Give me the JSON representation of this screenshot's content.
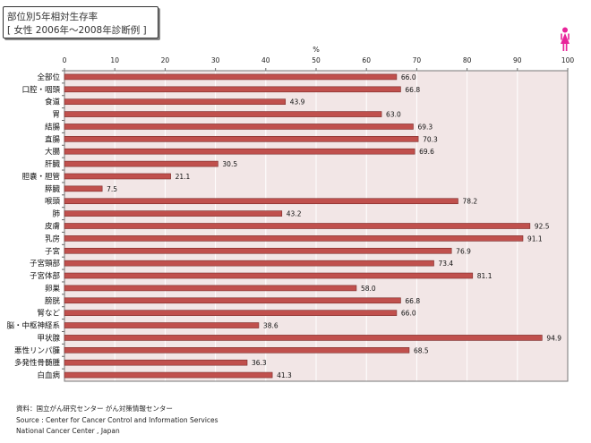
{
  "title": {
    "line1": "部位別5年相対生存率",
    "line2": "[ 女性  2006年～2008年診断例 ]"
  },
  "icon": "woman-icon",
  "source": {
    "line1": "資料：国立がん研究センター  がん対策情報センター",
    "line2": "Source : Center for Cancer Control and Information Services",
    "line3": "National Cancer Center , Japan"
  },
  "colors": {
    "bar": "#c0504d",
    "bar_border": "#7a2a28",
    "plot_bg": "#f2e6e6",
    "icon": "#e8249a"
  },
  "chart_data": {
    "type": "bar",
    "orientation": "horizontal",
    "unit_label": "%",
    "xlim": [
      0,
      100
    ],
    "x_ticks": [
      0,
      10,
      20,
      30,
      40,
      50,
      60,
      70,
      80,
      90,
      100
    ],
    "grid": true,
    "categories": [
      "全部位",
      "口腔・咽頭",
      "食道",
      "胃",
      "結腸",
      "直腸",
      "大腸",
      "肝臓",
      "胆嚢・胆管",
      "膵臓",
      "喉頭",
      "肺",
      "皮膚",
      "乳房",
      "子宮",
      "子宮頸部",
      "子宮体部",
      "卵巣",
      "膀胱",
      "腎など",
      "脳・中枢神経系",
      "甲状腺",
      "悪性リンパ腫",
      "多発性骨髄腫",
      "白血病"
    ],
    "values": [
      66.0,
      66.8,
      43.9,
      63.0,
      69.3,
      70.3,
      69.6,
      30.5,
      21.1,
      7.5,
      78.2,
      43.2,
      92.5,
      91.1,
      76.9,
      73.4,
      81.1,
      58.0,
      66.8,
      66.0,
      38.6,
      94.9,
      68.5,
      36.3,
      41.3
    ],
    "value_labels": [
      "66.0",
      "66.8",
      "43.9",
      "63.0",
      "69.3",
      "70.3",
      "69.6",
      "30.5",
      "21.1",
      "7.5",
      "78.2",
      "43.2",
      "92.5",
      "91.1",
      "76.9",
      "73.4",
      "81.1",
      "58.0",
      "66.8",
      "66.0",
      "38.6",
      "94.9",
      "68.5",
      "36.3",
      "41.3"
    ]
  }
}
